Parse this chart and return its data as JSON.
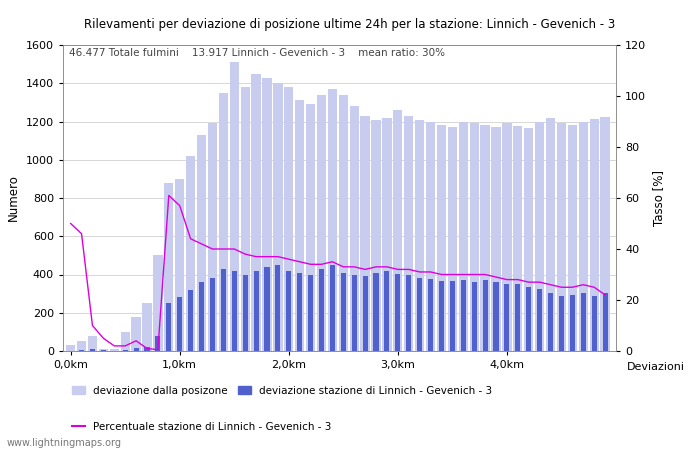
{
  "title": "Rilevamenti per deviazione di posizione ultime 24h per la stazione: Linnich - Gevenich - 3",
  "subtitle": "46.477 Totale fulmini    13.917 Linnich - Gevenich - 3    mean ratio: 30%",
  "ylabel_left": "Numero",
  "ylabel_right": "Tasso [%]",
  "ylim_left": [
    0,
    1600
  ],
  "ylim_right": [
    0,
    120
  ],
  "yticks_left": [
    0,
    200,
    400,
    600,
    800,
    1000,
    1200,
    1400,
    1600
  ],
  "yticks_right": [
    0,
    20,
    40,
    60,
    80,
    100,
    120
  ],
  "watermark": "www.lightningmaps.org",
  "bar_color_light": "#c8ccee",
  "bar_color_dark": "#5060cc",
  "line_color": "#dd00dd",
  "bg_color": "#ffffff",
  "grid_color": "#c8c8c8",
  "light_bars": [
    30,
    50,
    80,
    10,
    8,
    100,
    180,
    250,
    500,
    880,
    900,
    1020,
    1130,
    1190,
    1350,
    1510,
    1380,
    1450,
    1430,
    1400,
    1380,
    1310,
    1290,
    1340,
    1370,
    1340,
    1280,
    1230,
    1210,
    1220,
    1260,
    1230,
    1210,
    1200,
    1180,
    1170,
    1200,
    1190,
    1180,
    1170,
    1190,
    1175,
    1165,
    1195,
    1220,
    1190,
    1180,
    1195,
    1215,
    1225
  ],
  "dark_bars": [
    0,
    5,
    8,
    3,
    2,
    5,
    15,
    20,
    80,
    250,
    280,
    320,
    360,
    380,
    430,
    420,
    400,
    420,
    440,
    450,
    420,
    410,
    400,
    430,
    450,
    410,
    400,
    390,
    410,
    420,
    405,
    395,
    380,
    375,
    365,
    365,
    370,
    360,
    370,
    360,
    350,
    350,
    335,
    325,
    305,
    285,
    295,
    305,
    285,
    305
  ],
  "line_pct": [
    50,
    46,
    10,
    5,
    2,
    2,
    4,
    1,
    0.5,
    61,
    57,
    44,
    42,
    40,
    40,
    40,
    38,
    37,
    37,
    37,
    36,
    35,
    34,
    34,
    35,
    33,
    33,
    32,
    33,
    33,
    32,
    32,
    31,
    31,
    30,
    30,
    30,
    30,
    30,
    29,
    28,
    28,
    27,
    27,
    26,
    25,
    25,
    26,
    25,
    22
  ],
  "xtick_positions": [
    0,
    10,
    20,
    30,
    40
  ],
  "xtick_labels": [
    "0,0km",
    "1,0km",
    "2,0km",
    "3,0km",
    "4,0km"
  ]
}
